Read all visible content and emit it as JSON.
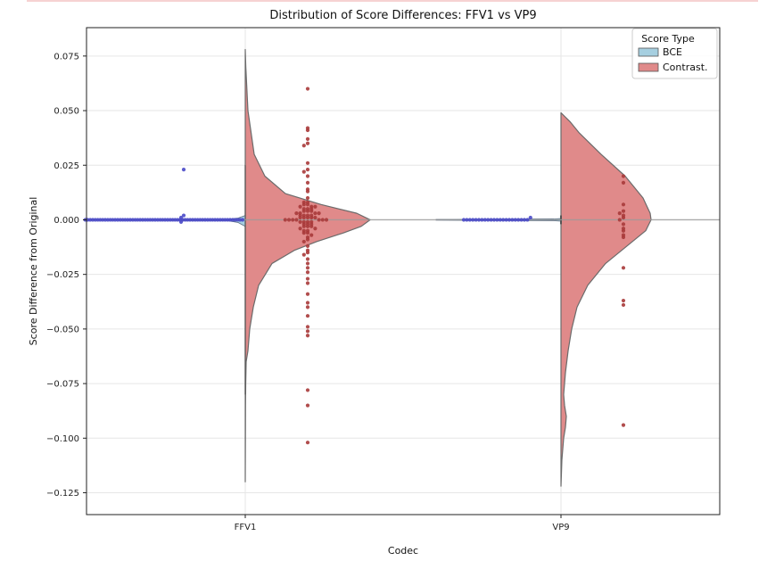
{
  "chart_data": {
    "type": "violin",
    "title": "Distribution of Score Differences: FFV1 vs VP9",
    "xlabel": "Codec",
    "ylabel": "Score Difference from Original",
    "categories": [
      "FFV1",
      "VP9"
    ],
    "ylim": [
      -0.135,
      0.088
    ],
    "yticks": [
      0.075,
      0.05,
      0.025,
      0.0,
      -0.025,
      -0.05,
      -0.075,
      -0.1,
      -0.125
    ],
    "ytick_labels": [
      "0.075",
      "0.050",
      "0.025",
      "0.000",
      "−0.025",
      "−0.050",
      "−0.075",
      "−0.100",
      "−0.125"
    ],
    "grid": true,
    "legend": {
      "title": "Score Type",
      "position": "top-right",
      "entries": [
        {
          "label": "BCE",
          "color": "#a6cfe0"
        },
        {
          "label": "Contrast.",
          "color": "#e08a8a"
        }
      ]
    },
    "series": [
      {
        "name": "BCE",
        "color": "#a6cfe0",
        "point_color": "#4a4ac8",
        "side": "left",
        "violins": [
          {
            "category": "FFV1",
            "range": [
              -0.003,
              0.002
            ],
            "peak": 0.0
          },
          {
            "category": "VP9",
            "range": [
              -0.001,
              0.001
            ],
            "peak": 0.0
          }
        ],
        "points": {
          "FFV1": [
            0.0,
            0.0,
            0.0,
            0.0,
            0.0,
            0.0,
            0.0,
            0.0,
            0.0,
            0.0,
            0.0,
            0.0,
            0.0,
            0.0,
            0.0,
            0.0,
            0.0,
            0.0,
            0.0,
            0.0,
            0.0,
            0.0,
            0.0,
            0.0,
            0.0,
            0.0,
            0.0,
            0.0,
            0.0,
            0.0,
            0.0,
            0.0,
            0.0,
            0.0,
            0.0,
            0.0,
            0.0,
            0.0,
            0.0,
            0.0,
            0.0,
            0.0,
            0.0,
            0.0,
            0.0,
            0.0,
            0.0,
            0.0,
            0.0,
            0.0,
            0.0,
            0.0,
            0.0,
            0.0,
            0.0,
            0.0,
            0.0,
            0.0,
            0.0,
            0.0,
            0.0,
            0.0,
            0.0,
            0.0,
            0.001,
            0.002,
            -0.001,
            0.023
          ],
          "VP9": [
            0.0,
            0.0,
            0.0,
            0.0,
            0.0,
            0.0,
            0.0,
            0.0,
            0.0,
            0.0,
            0.0,
            0.0,
            0.0,
            0.0,
            0.0,
            0.0,
            0.0,
            0.0,
            0.0,
            0.0,
            0.0,
            0.0,
            0.001
          ]
        }
      },
      {
        "name": "Contrast.",
        "color": "#e08a8a",
        "point_color": "#a83a3a",
        "side": "right",
        "violins": [
          {
            "category": "FFV1",
            "range": [
              -0.12,
              0.078
            ],
            "peak": -0.002
          },
          {
            "category": "VP9",
            "range": [
              -0.122,
              0.049
            ],
            "peak": 0.0
          }
        ],
        "points": {
          "FFV1": [
            0.06,
            0.042,
            0.041,
            0.037,
            0.035,
            0.034,
            0.026,
            0.023,
            0.022,
            0.02,
            0.017,
            0.014,
            0.013,
            0.01,
            0.008,
            0.008,
            0.007,
            0.007,
            0.006,
            0.006,
            0.006,
            0.005,
            0.005,
            0.005,
            0.004,
            0.004,
            0.004,
            0.003,
            0.003,
            0.003,
            0.003,
            0.002,
            0.002,
            0.002,
            0.002,
            0.001,
            0.001,
            0.001,
            0.001,
            0.001,
            0.0,
            0.0,
            0.0,
            0.0,
            0.0,
            0.0,
            0.0,
            -0.001,
            -0.001,
            -0.001,
            -0.001,
            -0.002,
            -0.002,
            -0.002,
            -0.003,
            -0.003,
            -0.003,
            -0.004,
            -0.004,
            -0.005,
            -0.005,
            -0.006,
            -0.006,
            -0.007,
            -0.008,
            -0.009,
            -0.01,
            -0.012,
            -0.014,
            -0.015,
            -0.016,
            -0.018,
            -0.02,
            -0.022,
            -0.024,
            -0.027,
            -0.029,
            -0.034,
            -0.038,
            -0.04,
            -0.044,
            -0.049,
            -0.051,
            -0.053,
            -0.078,
            -0.085,
            -0.102
          ],
          "VP9": [
            0.02,
            0.017,
            0.007,
            0.004,
            0.003,
            0.002,
            0.001,
            0.0,
            -0.002,
            -0.004,
            -0.005,
            -0.007,
            -0.008,
            -0.022,
            -0.037,
            -0.039,
            -0.094
          ]
        }
      }
    ]
  }
}
